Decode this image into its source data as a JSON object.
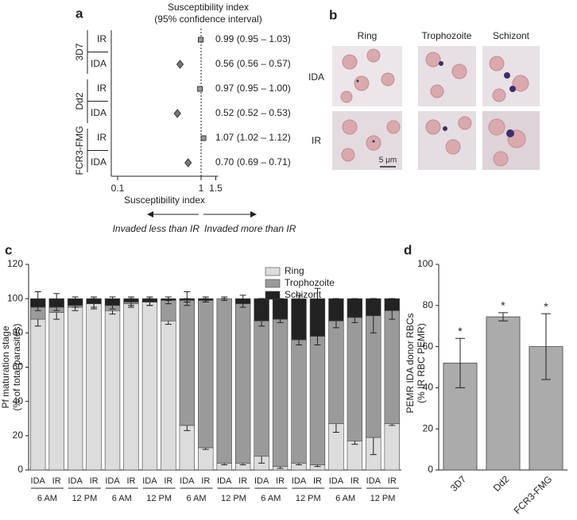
{
  "chart_data": [
    {
      "type": "forest",
      "label": "a",
      "header": [
        "Susceptibility index",
        "(95% confidence interval)"
      ],
      "categories": [
        "IR",
        "IDA",
        "IR",
        "IDA",
        "IR",
        "IDA"
      ],
      "group_labels": [
        "3D7",
        "Dd2",
        "FCR3-FMG"
      ],
      "values": [
        0.99,
        0.56,
        0.97,
        0.52,
        1.07,
        0.7
      ],
      "lower": [
        0.95,
        0.56,
        0.95,
        0.52,
        1.02,
        0.69
      ],
      "upper": [
        1.03,
        0.57,
        1.0,
        0.53,
        1.12,
        0.71
      ],
      "value_labels": [
        "0.99 (0.95 – 1.03)",
        "0.56 (0.56 – 0.57)",
        "0.97 (0.95 – 1.00)",
        "0.52 (0.52 – 0.53)",
        "1.07 (1.02 – 1.12)",
        "0.70 (0.69 – 0.71)"
      ],
      "xlim": [
        0.1,
        1.5
      ],
      "xticks": [
        0.1,
        1,
        1.5
      ],
      "log_x": true,
      "reference": 1,
      "xlabel": "Susceptibility index",
      "annotations": [
        "Invaded less than IR",
        "Invaded more than IR"
      ]
    },
    {
      "type": "stacked_bar",
      "label": "c",
      "ylabel": [
        "Pf maturation stage",
        "(% of total parasites)"
      ],
      "categories": [
        "IDA",
        "IR",
        "IDA",
        "IR",
        "IDA",
        "IR",
        "IDA",
        "IR",
        "IDA",
        "IR",
        "IDA",
        "IR",
        "IDA",
        "IR",
        "IDA",
        "IR",
        "IDA",
        "IR",
        "IDA",
        "IR"
      ],
      "time_labels": [
        "6 AM",
        "12 PM",
        "6 AM",
        "12 PM",
        "6 AM",
        "12 PM",
        "6 AM",
        "12 PM",
        "6 AM",
        "12 PM"
      ],
      "ylim": [
        0,
        120
      ],
      "yticks": [
        0,
        20,
        40,
        60,
        80,
        100,
        120
      ],
      "series": [
        {
          "name": "Ring",
          "color": "#dcdcdc",
          "values": [
            88,
            92,
            95,
            97,
            93,
            97,
            98,
            87,
            26,
            13,
            4,
            4,
            8,
            2,
            4,
            3,
            27,
            17,
            19,
            27
          ],
          "errors": [
            4,
            4,
            2,
            3,
            2,
            2,
            2,
            2,
            3,
            1,
            1,
            1,
            4,
            1,
            1,
            1,
            5,
            2,
            10,
            1
          ]
        },
        {
          "name": "Trophozoite",
          "color": "#9a9a9a",
          "values": [
            7,
            3,
            1,
            0,
            3,
            1,
            0,
            12,
            73,
            86,
            96,
            93,
            79,
            86,
            72,
            75,
            60,
            72,
            71,
            66
          ],
          "errors": [
            2,
            2,
            1,
            2,
            2,
            2,
            2,
            2,
            1,
            1,
            1,
            2,
            3,
            2,
            3,
            5,
            4,
            3,
            10,
            5
          ]
        },
        {
          "name": "Schizont",
          "color": "#222222",
          "values": [
            5,
            5,
            4,
            3,
            4,
            2,
            2,
            1,
            1,
            1,
            0,
            3,
            13,
            12,
            24,
            22,
            13,
            11,
            10,
            7
          ],
          "errors": [
            4,
            3,
            1,
            1,
            1,
            1,
            1,
            1,
            4,
            1,
            0,
            2,
            0,
            0,
            2,
            6,
            0,
            0,
            0,
            0
          ]
        }
      ],
      "legend": "top-right"
    },
    {
      "type": "bar",
      "label": "d",
      "ylabel": [
        "PEMR IDA donor RBCs",
        "(% IR RBC PEMR)"
      ],
      "categories": [
        "3D7",
        "Dd2",
        "FCR3-FMG"
      ],
      "values": [
        52,
        74.5,
        60
      ],
      "errors": [
        12,
        2,
        16
      ],
      "annotations": [
        "*",
        "*",
        "*"
      ],
      "color": "#ababab",
      "ylim": [
        0,
        100
      ],
      "yticks": [
        0,
        20,
        40,
        60,
        80,
        100
      ]
    }
  ],
  "image_panel": {
    "label": "b",
    "columns": [
      "Ring",
      "Trophozoite",
      "Schizont"
    ],
    "rows": [
      "IDA",
      "IR"
    ],
    "scale_bar": "5 μm"
  }
}
